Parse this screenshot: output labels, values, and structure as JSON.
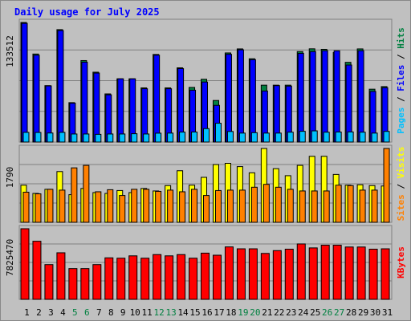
{
  "title": "Daily usage for July 2025",
  "colors": {
    "hits": "#008040",
    "files": "#0000ff",
    "pages": "#00c0ff",
    "visits": "#ffff00",
    "sites": "#ff8000",
    "kbytes": "#ff0000",
    "title": "#0000ff",
    "panel_bg": "#c0c0c0"
  },
  "chart_data": [
    {
      "type": "bar",
      "name": "top",
      "ymax_label": "133512",
      "ymax": 133512,
      "legend": [
        "Pages",
        "Files",
        "Hits"
      ],
      "categories": [
        "1",
        "2",
        "3",
        "4",
        "5",
        "6",
        "7",
        "8",
        "9",
        "10",
        "11",
        "12",
        "13",
        "14",
        "15",
        "16",
        "17",
        "18",
        "19",
        "20",
        "21",
        "22",
        "23",
        "24",
        "25",
        "26",
        "27",
        "28",
        "29",
        "30",
        "31"
      ],
      "series": [
        {
          "name": "Hits",
          "values": [
            133512,
            98280,
            63000,
            125530,
            44000,
            90970,
            78000,
            53760,
            70600,
            70600,
            60480,
            97800,
            60500,
            82880,
            61000,
            70100,
            46400,
            99500,
            104000,
            93000,
            63500,
            63500,
            63500,
            101000,
            104100,
            103500,
            100000,
            89000,
            104000,
            59000,
            61900
          ]
        },
        {
          "name": "Files",
          "values": [
            132500,
            97000,
            62700,
            124500,
            43380,
            89190,
            77000,
            52750,
            70600,
            70600,
            59500,
            97000,
            59500,
            82000,
            57890,
            67000,
            41000,
            98000,
            103000,
            92000,
            57000,
            63000,
            62480,
            99000,
            101000,
            102000,
            101950,
            86000,
            102000,
            56530,
            60700
          ]
        },
        {
          "name": "Pages",
          "values": [
            10800,
            10700,
            10100,
            10800,
            9000,
            9000,
            8600,
            9000,
            9000,
            9300,
            9000,
            9900,
            10000,
            11100,
            11200,
            15000,
            21000,
            11800,
            10000,
            10500,
            10000,
            10000,
            11000,
            12000,
            12500,
            11000,
            11200,
            11300,
            11000,
            10000,
            11900
          ]
        }
      ]
    },
    {
      "type": "bar",
      "name": "middle",
      "ymax_label": "1790",
      "ymax": 1790,
      "legend": [
        "Sites",
        "Visits"
      ],
      "categories": [
        "1",
        "2",
        "3",
        "4",
        "5",
        "6",
        "7",
        "8",
        "9",
        "10",
        "11",
        "12",
        "13",
        "14",
        "15",
        "16",
        "17",
        "18",
        "19",
        "20",
        "21",
        "22",
        "23",
        "24",
        "25",
        "26",
        "27",
        "28",
        "29",
        "30",
        "31"
      ],
      "series": [
        {
          "name": "Visits",
          "values": [
            900,
            700,
            800,
            1230,
            670,
            820,
            720,
            700,
            770,
            720,
            820,
            760,
            890,
            1250,
            900,
            1090,
            1400,
            1430,
            1350,
            1200,
            1790,
            1300,
            1130,
            1380,
            1600,
            1600,
            1160,
            900,
            910,
            890,
            880
          ]
        },
        {
          "name": "Sites",
          "values": [
            730,
            690,
            800,
            780,
            1320,
            1380,
            740,
            790,
            650,
            800,
            800,
            750,
            780,
            740,
            800,
            650,
            770,
            780,
            780,
            850,
            920,
            850,
            800,
            760,
            760,
            760,
            900,
            890,
            780,
            780,
            1790
          ]
        }
      ]
    },
    {
      "type": "bar",
      "name": "bottom",
      "ymax_label": "7825470",
      "ymax": 7825470,
      "legend": [
        "KBytes"
      ],
      "categories": [
        "1",
        "2",
        "3",
        "4",
        "5",
        "6",
        "7",
        "8",
        "9",
        "10",
        "11",
        "12",
        "13",
        "14",
        "15",
        "16",
        "17",
        "18",
        "19",
        "20",
        "21",
        "22",
        "23",
        "24",
        "25",
        "26",
        "27",
        "28",
        "29",
        "30",
        "31"
      ],
      "series": [
        {
          "name": "KBytes",
          "values": [
            7825470,
            6440000,
            3850000,
            5160000,
            3410000,
            3410000,
            3850000,
            4600000,
            4560000,
            4820000,
            4560000,
            4960000,
            4820000,
            4960000,
            4560000,
            5120000,
            4890000,
            5810000,
            5600000,
            5600000,
            5090000,
            5400000,
            5560000,
            6140000,
            5700000,
            6000000,
            6000000,
            5800000,
            5800000,
            5560000,
            5600000
          ]
        }
      ]
    }
  ],
  "x_ticks": [
    "1",
    "2",
    "3",
    "4",
    "5",
    "6",
    "7",
    "8",
    "9",
    "10",
    "11",
    "12",
    "13",
    "14",
    "15",
    "16",
    "17",
    "18",
    "19",
    "20",
    "21",
    "22",
    "23",
    "24",
    "25",
    "26",
    "27",
    "28",
    "29",
    "30",
    "31"
  ],
  "weekend_days": [
    "5",
    "6",
    "12",
    "13",
    "19",
    "20",
    "26",
    "27"
  ]
}
